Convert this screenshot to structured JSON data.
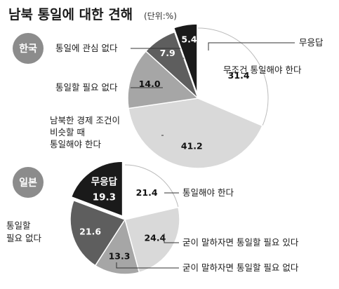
{
  "title": "남북 통일에 대한 견해",
  "unit": "(단위:%)",
  "chart_data": [
    {
      "type": "pie",
      "badge": "한국",
      "slices": [
        {
          "name": "무조건 통일해야 한다",
          "value": 31.4,
          "label": "31.4",
          "color": "#ffffff",
          "text_color": "#111111"
        },
        {
          "name": "남북한 경제 조건이 비슷할 때 통일해야 한다",
          "label_lines": [
            "남북한 경제 조건이",
            "비슷할 때",
            "통일해야 한다"
          ],
          "value": 41.2,
          "label": "41.2",
          "color": "#d9d9d9",
          "text_color": "#111111"
        },
        {
          "name": "통일할 필요 없다",
          "value": 14.0,
          "label": "14.0",
          "color": "#a6a6a6",
          "text_color": "#111111"
        },
        {
          "name": "통일에 관심 없다",
          "value": 7.9,
          "label": "7.9",
          "color": "#5e5e5e",
          "text_color": "#ffffff"
        },
        {
          "name": "무응답",
          "value": 5.4,
          "label": "5.4",
          "color": "#1a1a1a",
          "text_color": "#ffffff"
        }
      ]
    },
    {
      "type": "pie",
      "badge": "일본",
      "slices": [
        {
          "name": "통일해야 한다",
          "value": 21.4,
          "label": "21.4",
          "color": "#ffffff",
          "text_color": "#111111"
        },
        {
          "name": "굳이 말하자면 통일할 필요 있다",
          "value": 24.4,
          "label": "24.4",
          "color": "#d9d9d9",
          "text_color": "#111111"
        },
        {
          "name": "굳이 말하자면 통일할 필요 없다",
          "value": 13.3,
          "label": "13.3",
          "color": "#a6a6a6",
          "text_color": "#111111"
        },
        {
          "name": "통일할 필요 없다",
          "label_lines": [
            "통일할",
            "필요 없다"
          ],
          "value": 21.6,
          "label": "21.6",
          "color": "#5e5e5e",
          "text_color": "#ffffff"
        },
        {
          "name": "무응답",
          "value": 19.3,
          "label": "19.3",
          "color": "#1a1a1a",
          "text_color": "#ffffff"
        }
      ]
    }
  ]
}
